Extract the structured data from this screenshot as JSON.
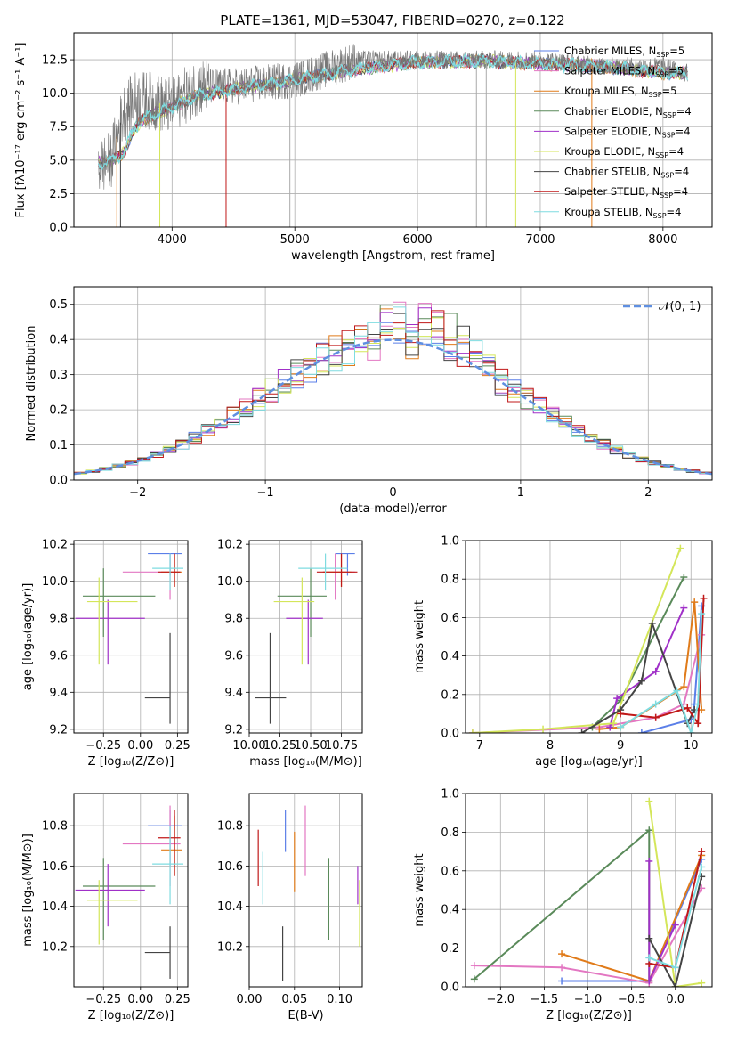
{
  "figure_title": "PLATE=1361, MJD=53047, FIBERID=0270, z=0.122",
  "colors": {
    "Chabrier MILES": "#5b7fe8",
    "Salpeter MILES": "#e377c2",
    "Kroupa MILES": "#e07b1a",
    "Chabrier ELODIE": "#5a8a5a",
    "Salpeter ELODIE": "#a030c8",
    "Kroupa ELODIE": "#d4e65a",
    "Chabrier STELIB": "#444444",
    "Salpeter STELIB": "#c01818",
    "Kroupa STELIB": "#7fdce0"
  },
  "legend_main": [
    {
      "name": "Chabrier MILES",
      "nssp": "5"
    },
    {
      "name": "Salpeter MILES",
      "nssp": "5"
    },
    {
      "name": "Kroupa MILES",
      "nssp": "5"
    },
    {
      "name": "Chabrier ELODIE",
      "nssp": "4"
    },
    {
      "name": "Salpeter ELODIE",
      "nssp": "4"
    },
    {
      "name": "Kroupa ELODIE",
      "nssp": "4"
    },
    {
      "name": "Chabrier STELIB",
      "nssp": "4"
    },
    {
      "name": "Salpeter STELIB",
      "nssp": "4"
    },
    {
      "name": "Kroupa STELIB",
      "nssp": "4"
    }
  ],
  "chart_data": [
    {
      "id": "spectrum",
      "type": "line",
      "xlabel": "wavelength [Angstrom, rest frame]",
      "ylabel": "Flux [fλ10⁻¹⁷ erg cm⁻² s⁻¹ A⁻¹]",
      "xlim": [
        3200,
        8400
      ],
      "ylim": [
        0,
        14.5
      ],
      "xticks": [
        4000,
        5000,
        6000,
        7000,
        8000
      ],
      "yticks": [
        0.0,
        2.5,
        5.0,
        7.5,
        10.0,
        12.5
      ],
      "series": [
        {
          "name": "data (grey)",
          "x": [
            3400,
            3500,
            3600,
            3700,
            3800,
            4000,
            4200,
            4500,
            5000,
            5500,
            6000,
            6500,
            7000,
            7500,
            8000,
            8200
          ],
          "y": [
            4.5,
            5,
            8.5,
            9.5,
            9.5,
            9,
            10.5,
            10.5,
            11,
            12.5,
            12.5,
            12.5,
            12.5,
            12,
            12,
            11.5
          ]
        },
        {
          "name": "model (cyan)",
          "x": [
            3400,
            3500,
            3600,
            3700,
            3800,
            4000,
            4200,
            4500,
            5000,
            5500,
            6000,
            6500,
            7000,
            7500,
            8000,
            8200
          ],
          "y": [
            4.8,
            4.9,
            5.5,
            7.5,
            8.2,
            9,
            9.8,
            10.3,
            11,
            11.8,
            12.3,
            12.4,
            12.2,
            12,
            11.5,
            11.5
          ]
        }
      ]
    },
    {
      "id": "residuals",
      "type": "line",
      "xlabel": "(data-model)/error",
      "ylabel": "Normed distribution",
      "xlim": [
        -2.5,
        2.5
      ],
      "ylim": [
        0,
        0.55
      ],
      "xticks": [
        -2,
        -1,
        0,
        1,
        2
      ],
      "xticklabels": [
        "−2",
        "−1",
        "0",
        "1",
        "2"
      ],
      "yticks": [
        0.0,
        0.1,
        0.2,
        0.3,
        0.4,
        0.5
      ],
      "legend": "𝒩(0, 1)",
      "gaussian": {
        "mean": 0,
        "sigma": 1
      }
    },
    {
      "id": "age_vs_z",
      "type": "scatter",
      "xlabel": "Z [log₁₀(Z/Z⊙)]",
      "ylabel": "age  [log₁₀(age/yr)]",
      "xlim": [
        -0.45,
        0.32
      ],
      "ylim": [
        9.18,
        10.22
      ],
      "xticks": [
        -0.25,
        0.0,
        0.25
      ],
      "xticklabels": [
        "−0.25",
        "0.00",
        "0.25"
      ],
      "yticks": [
        9.2,
        9.4,
        9.6,
        9.8,
        10.0,
        10.2
      ]
    },
    {
      "id": "age_vs_mass",
      "type": "scatter",
      "xlabel": "mass [log₁₀(M/M⊙)]",
      "ylabel": "",
      "xlim": [
        10.0,
        10.92
      ],
      "ylim": [
        9.18,
        10.22
      ],
      "xticks": [
        10.0,
        10.25,
        10.5,
        10.75
      ],
      "xticklabels": [
        "10.00",
        "10.25",
        "10.50",
        "10.75"
      ],
      "yticks": [
        9.2,
        9.4,
        9.6,
        9.8,
        10.0,
        10.2
      ]
    },
    {
      "id": "mass_weight_vs_age",
      "type": "line",
      "xlabel": "age  [log₁₀(age/yr)]",
      "ylabel": "mass weight",
      "xlim": [
        6.8,
        10.3
      ],
      "ylim": [
        0,
        1
      ],
      "xticks": [
        7,
        8,
        9,
        10
      ],
      "yticks": [
        0.0,
        0.2,
        0.4,
        0.6,
        0.8,
        1.0
      ]
    },
    {
      "id": "mass_vs_z",
      "type": "scatter",
      "xlabel": "Z [log₁₀(Z/Z⊙)]",
      "ylabel": "mass [log₁₀(M/M⊙)]",
      "xlim": [
        -0.45,
        0.32
      ],
      "ylim": [
        10.0,
        10.96
      ],
      "xticks": [
        -0.25,
        0.0,
        0.25
      ],
      "xticklabels": [
        "−0.25",
        "0.00",
        "0.25"
      ],
      "yticks": [
        10.2,
        10.4,
        10.6,
        10.8
      ]
    },
    {
      "id": "mass_vs_ebv",
      "type": "scatter",
      "xlabel": "E(B-V)",
      "ylabel": "",
      "xlim": [
        0.0,
        0.125
      ],
      "ylim": [
        10.0,
        10.96
      ],
      "xticks": [
        0.0,
        0.05,
        0.1
      ],
      "xticklabels": [
        "0.00",
        "0.05",
        "0.10"
      ],
      "yticks": [
        10.2,
        10.4,
        10.6,
        10.8
      ]
    },
    {
      "id": "mass_weight_vs_z",
      "type": "line",
      "xlabel": "Z [log₁₀(Z/Z⊙)]",
      "ylabel": "mass weight",
      "xlim": [
        -2.4,
        0.42
      ],
      "ylim": [
        0,
        1
      ],
      "xticks": [
        -2.0,
        -1.5,
        -1.0,
        -0.5,
        0.0
      ],
      "xticklabels": [
        "−2.0",
        "−1.5",
        "−1.0",
        "−0.5",
        "0.0"
      ],
      "yticks": [
        0.0,
        0.2,
        0.4,
        0.6,
        0.8,
        1.0
      ]
    }
  ],
  "points": {
    "age_z": [
      {
        "m": "Chabrier MILES",
        "x": 0.2,
        "y": 10.15,
        "xe": [
          0.05,
          0.28
        ],
        "ye": [
          10.03,
          10.15
        ]
      },
      {
        "m": "Salpeter MILES",
        "x": 0.2,
        "y": 10.05,
        "xe": [
          -0.12,
          0.27
        ],
        "ye": [
          9.9,
          10.15
        ]
      },
      {
        "m": "Kroupa MILES",
        "x": 0.23,
        "y": 10.05,
        "xe": [
          0.14,
          0.28
        ],
        "ye": [
          9.97,
          10.15
        ]
      },
      {
        "m": "Chabrier ELODIE",
        "x": -0.25,
        "y": 9.92,
        "xe": [
          -0.39,
          0.1
        ],
        "ye": [
          9.7,
          10.07
        ]
      },
      {
        "m": "Salpeter ELODIE",
        "x": -0.22,
        "y": 9.8,
        "xe": [
          -0.44,
          0.03
        ],
        "ye": [
          9.55,
          9.9
        ]
      },
      {
        "m": "Kroupa ELODIE",
        "x": -0.28,
        "y": 9.89,
        "xe": [
          -0.36,
          -0.02
        ],
        "ye": [
          9.55,
          10.02
        ]
      },
      {
        "m": "Chabrier STELIB",
        "x": 0.2,
        "y": 9.37,
        "xe": [
          0.03,
          0.2
        ],
        "ye": [
          9.23,
          9.72
        ]
      },
      {
        "m": "Salpeter STELIB",
        "x": 0.23,
        "y": 10.05,
        "xe": [
          0.12,
          0.27
        ],
        "ye": [
          9.97,
          10.15
        ]
      },
      {
        "m": "Kroupa STELIB",
        "x": 0.2,
        "y": 10.07,
        "xe": [
          0.08,
          0.29
        ],
        "ye": [
          9.95,
          10.15
        ]
      }
    ],
    "age_mass": [
      {
        "m": "Chabrier MILES",
        "x": 10.8,
        "y": 10.15,
        "xe": [
          10.7,
          10.86
        ],
        "ye": [
          10.03,
          10.15
        ]
      },
      {
        "m": "Salpeter MILES",
        "x": 10.7,
        "y": 10.05,
        "xe": [
          10.6,
          10.86
        ],
        "ye": [
          9.9,
          10.15
        ]
      },
      {
        "m": "Kroupa MILES",
        "x": 10.75,
        "y": 10.05,
        "xe": [
          10.6,
          10.83
        ],
        "ye": [
          9.97,
          10.15
        ]
      },
      {
        "m": "Chabrier ELODIE",
        "x": 10.5,
        "y": 9.92,
        "xe": [
          10.23,
          10.63
        ],
        "ye": [
          9.7,
          10.07
        ]
      },
      {
        "m": "Salpeter ELODIE",
        "x": 10.48,
        "y": 9.8,
        "xe": [
          10.3,
          10.6
        ],
        "ye": [
          9.55,
          9.9
        ]
      },
      {
        "m": "Kroupa ELODIE",
        "x": 10.43,
        "y": 9.89,
        "xe": [
          10.2,
          10.53
        ],
        "ye": [
          9.55,
          10.02
        ]
      },
      {
        "m": "Chabrier STELIB",
        "x": 10.17,
        "y": 9.37,
        "xe": [
          10.05,
          10.3
        ],
        "ye": [
          9.23,
          9.72
        ]
      },
      {
        "m": "Salpeter STELIB",
        "x": 10.75,
        "y": 10.05,
        "xe": [
          10.55,
          10.88
        ],
        "ye": [
          9.97,
          10.15
        ]
      },
      {
        "m": "Kroupa STELIB",
        "x": 10.62,
        "y": 10.07,
        "xe": [
          10.4,
          10.8
        ],
        "ye": [
          9.95,
          10.15
        ]
      }
    ],
    "mass_z": [
      {
        "m": "Chabrier MILES",
        "x": 0.2,
        "y": 10.8,
        "xe": [
          0.05,
          0.28
        ],
        "ye": [
          10.6,
          10.88
        ]
      },
      {
        "m": "Salpeter MILES",
        "x": 0.2,
        "y": 10.71,
        "xe": [
          -0.12,
          0.27
        ],
        "ye": [
          10.5,
          10.9
        ]
      },
      {
        "m": "Kroupa MILES",
        "x": 0.23,
        "y": 10.68,
        "xe": [
          0.14,
          0.28
        ],
        "ye": [
          10.55,
          10.85
        ]
      },
      {
        "m": "Chabrier ELODIE",
        "x": -0.25,
        "y": 10.5,
        "xe": [
          -0.39,
          0.1
        ],
        "ye": [
          10.23,
          10.64
        ]
      },
      {
        "m": "Salpeter ELODIE",
        "x": -0.22,
        "y": 10.48,
        "xe": [
          -0.44,
          0.03
        ],
        "ye": [
          10.3,
          10.61
        ]
      },
      {
        "m": "Kroupa ELODIE",
        "x": -0.28,
        "y": 10.43,
        "xe": [
          -0.36,
          -0.02
        ],
        "ye": [
          10.21,
          10.53
        ]
      },
      {
        "m": "Chabrier STELIB",
        "x": 0.2,
        "y": 10.17,
        "xe": [
          0.03,
          0.2
        ],
        "ye": [
          10.04,
          10.3
        ]
      },
      {
        "m": "Salpeter STELIB",
        "x": 0.23,
        "y": 10.74,
        "xe": [
          0.12,
          0.27
        ],
        "ye": [
          10.55,
          10.88
        ]
      },
      {
        "m": "Kroupa STELIB",
        "x": 0.2,
        "y": 10.61,
        "xe": [
          0.08,
          0.29
        ],
        "ye": [
          10.41,
          10.8
        ]
      }
    ],
    "mass_ebv": [
      {
        "m": "Chabrier MILES",
        "x": 0.04,
        "ye": [
          10.67,
          10.88
        ]
      },
      {
        "m": "Salpeter MILES",
        "x": 0.062,
        "ye": [
          10.55,
          10.9
        ]
      },
      {
        "m": "Kroupa MILES",
        "x": 0.05,
        "ye": [
          10.47,
          10.77
        ]
      },
      {
        "m": "Chabrier ELODIE",
        "x": 0.088,
        "ye": [
          10.23,
          10.64
        ]
      },
      {
        "m": "Salpeter ELODIE",
        "x": 0.12,
        "ye": [
          10.41,
          10.6
        ]
      },
      {
        "m": "Kroupa ELODIE",
        "x": 0.122,
        "ye": [
          10.2,
          10.53
        ]
      },
      {
        "m": "Chabrier STELIB",
        "x": 0.037,
        "ye": [
          10.03,
          10.3
        ]
      },
      {
        "m": "Salpeter STELIB",
        "x": 0.01,
        "ye": [
          10.5,
          10.78
        ]
      },
      {
        "m": "Kroupa STELIB",
        "x": 0.015,
        "ye": [
          10.41,
          10.67
        ]
      }
    ],
    "mw_age": [
      {
        "m": "Chabrier MILES",
        "pts": [
          [
            9.3,
            0.0
          ],
          [
            10.0,
            0.07
          ],
          [
            10.05,
            0.15
          ],
          [
            10.15,
            0.66
          ]
        ]
      },
      {
        "m": "Salpeter MILES",
        "pts": [
          [
            6.9,
            0.0
          ],
          [
            8.7,
            0.03
          ],
          [
            9.5,
            0.08
          ],
          [
            9.9,
            0.15
          ],
          [
            10.15,
            0.51
          ]
        ]
      },
      {
        "m": "Kroupa MILES",
        "pts": [
          [
            8.7,
            0.02
          ],
          [
            9.0,
            0.03
          ],
          [
            9.9,
            0.24
          ],
          [
            10.05,
            0.68
          ],
          [
            10.15,
            0.12
          ]
        ]
      },
      {
        "m": "Chabrier ELODIE",
        "pts": [
          [
            8.6,
            0.03
          ],
          [
            9.0,
            0.17
          ],
          [
            9.9,
            0.81
          ]
        ]
      },
      {
        "m": "Salpeter ELODIE",
        "pts": [
          [
            8.85,
            0.03
          ],
          [
            8.95,
            0.18
          ],
          [
            9.5,
            0.32
          ],
          [
            9.9,
            0.65
          ]
        ]
      },
      {
        "m": "Kroupa ELODIE",
        "pts": [
          [
            6.9,
            0.0
          ],
          [
            7.9,
            0.02
          ],
          [
            8.9,
            0.05
          ],
          [
            9.85,
            0.96
          ]
        ]
      },
      {
        "m": "Chabrier STELIB",
        "pts": [
          [
            8.45,
            0.0
          ],
          [
            9.0,
            0.12
          ],
          [
            9.3,
            0.27
          ],
          [
            9.45,
            0.57
          ],
          [
            9.95,
            0.05
          ],
          [
            10.05,
            0.12
          ]
        ]
      },
      {
        "m": "Salpeter STELIB",
        "pts": [
          [
            9.0,
            0.1
          ],
          [
            9.5,
            0.08
          ],
          [
            9.95,
            0.13
          ],
          [
            10.1,
            0.05
          ],
          [
            10.18,
            0.7
          ]
        ]
      },
      {
        "m": "Kroupa STELIB",
        "pts": [
          [
            9.0,
            0.03
          ],
          [
            9.5,
            0.15
          ],
          [
            9.8,
            0.22
          ],
          [
            10.0,
            0.0
          ],
          [
            10.1,
            0.15
          ],
          [
            10.15,
            0.62
          ]
        ]
      }
    ],
    "mw_z": [
      {
        "m": "Chabrier MILES",
        "pts": [
          [
            -1.3,
            0.03
          ],
          [
            -0.3,
            0.03
          ],
          [
            0.3,
            0.66
          ]
        ]
      },
      {
        "m": "Salpeter MILES",
        "pts": [
          [
            -2.3,
            0.11
          ],
          [
            -1.3,
            0.1
          ],
          [
            -0.3,
            0.02
          ],
          [
            0.3,
            0.51
          ]
        ]
      },
      {
        "m": "Kroupa MILES",
        "pts": [
          [
            -1.3,
            0.17
          ],
          [
            -0.3,
            0.03
          ],
          [
            0.3,
            0.68
          ]
        ]
      },
      {
        "m": "Chabrier ELODIE",
        "pts": [
          [
            -2.3,
            0.04
          ],
          [
            -0.3,
            0.81
          ],
          [
            -0.3,
            0.03
          ]
        ]
      },
      {
        "m": "Salpeter ELODIE",
        "pts": [
          [
            -0.3,
            0.65
          ],
          [
            -0.3,
            0.03
          ],
          [
            0.0,
            0.32
          ]
        ]
      },
      {
        "m": "Kroupa ELODIE",
        "pts": [
          [
            -0.3,
            0.96
          ],
          [
            0.0,
            0.0
          ],
          [
            0.3,
            0.02
          ]
        ]
      },
      {
        "m": "Chabrier STELIB",
        "pts": [
          [
            -0.3,
            0.25
          ],
          [
            0.0,
            0.0
          ],
          [
            0.3,
            0.57
          ]
        ]
      },
      {
        "m": "Salpeter STELIB",
        "pts": [
          [
            -0.3,
            0.12
          ],
          [
            0.0,
            0.1
          ],
          [
            0.3,
            0.7
          ]
        ]
      },
      {
        "m": "Kroupa STELIB",
        "pts": [
          [
            -0.3,
            0.15
          ],
          [
            0.0,
            0.1
          ],
          [
            0.3,
            0.62
          ]
        ]
      }
    ]
  }
}
